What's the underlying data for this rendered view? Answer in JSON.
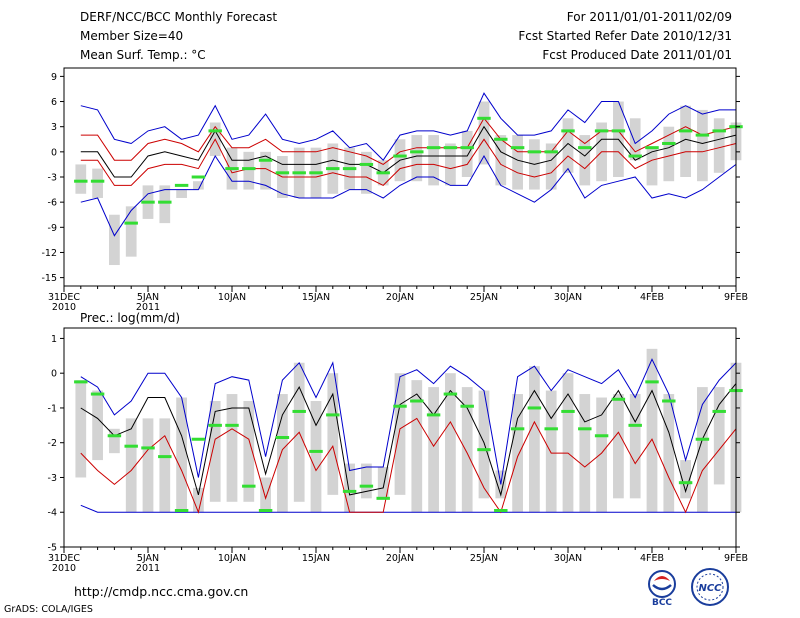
{
  "header": {
    "title": "DERF/NCC/BCC Monthly Forecast",
    "member_size": "Member Size=40",
    "variable": "Mean Surf. Temp.: °C",
    "forecast_period": "For 2011/01/01-2011/02/09",
    "start_date": "Fcst Started Refer Date 2010/12/31",
    "produced_date": "Fcst Produced Date 2011/01/01"
  },
  "footer": {
    "url": "http://cmdp.ncc.cma.gov.cn",
    "credit": "GrADS: COLA/IGES",
    "logo_bcc_text": "BCC",
    "logo_ncc_text": "NCC"
  },
  "colors": {
    "frame": "#000000",
    "bar": "#d3d3d3",
    "mean": "#000000",
    "inner_band": "#cc0000",
    "outer_band": "#0000cc",
    "observed": "#33dd33"
  },
  "chart_data": [
    {
      "type": "line",
      "panel": "temperature",
      "ylabel": "Mean Surf. Temp.: °C",
      "ylim": [
        -16,
        10
      ],
      "yticks": [
        9,
        6,
        3,
        0,
        -3,
        -6,
        -9,
        -12,
        -15
      ],
      "x": [
        1,
        2,
        3,
        4,
        5,
        6,
        7,
        8,
        9,
        10,
        11,
        12,
        13,
        14,
        15,
        16,
        17,
        18,
        19,
        20,
        21,
        22,
        23,
        24,
        25,
        26,
        27,
        28,
        29,
        30,
        31,
        32,
        33,
        34,
        35,
        36,
        37,
        38,
        39,
        40
      ],
      "xlim": [
        0,
        40
      ],
      "xtick_positions": [
        0,
        5,
        10,
        15,
        20,
        25,
        30,
        35,
        40
      ],
      "xtick_labels": [
        "31DEC",
        "5JAN",
        "10JAN",
        "15JAN",
        "20JAN",
        "25JAN",
        "30JAN",
        "4FEB",
        "9FEB"
      ],
      "xtick_sublabels": {
        "0": "2010",
        "5": "2011"
      },
      "series": [
        {
          "name": "ensemble range bar",
          "style": "bar",
          "low": [
            -5,
            -5.5,
            -13.5,
            -12.5,
            -8,
            -8.5,
            -5.5,
            -4.5,
            -0.5,
            -4.5,
            -4.5,
            -4.5,
            -5.5,
            -5.5,
            -5.5,
            -5,
            -4.5,
            -5,
            -4,
            -3.5,
            -3.5,
            -4,
            -4,
            -3,
            -1.5,
            -4,
            -4.5,
            -4.5,
            -4.5,
            -2.5,
            -4,
            -3.5,
            -3,
            -1,
            -4,
            -3.5,
            -3,
            -3.5,
            -2.5,
            -1
          ],
          "high": [
            -1.5,
            -2,
            -7.5,
            -6.5,
            -4,
            -4,
            -4.5,
            -3.5,
            3.5,
            0.5,
            0,
            0,
            -0.5,
            0.5,
            0.5,
            1,
            0.5,
            0,
            -1,
            1.5,
            2,
            2,
            1,
            2.5,
            6,
            2,
            2,
            1.5,
            1,
            4,
            2,
            3.5,
            6,
            4,
            0.5,
            3,
            5.5,
            5,
            4,
            3.5
          ]
        },
        {
          "name": "outer upper (blue)",
          "style": "line",
          "color": "#0000cc",
          "values": [
            5.5,
            5,
            1.5,
            1,
            2.5,
            3,
            1.5,
            2,
            5.5,
            1.5,
            2,
            4.5,
            1.5,
            1,
            1.5,
            2.5,
            0.5,
            1,
            -1,
            2,
            2.5,
            2.5,
            2,
            2.5,
            7,
            4,
            2,
            2,
            2.5,
            5,
            3.5,
            6,
            6,
            1,
            2.5,
            4.5,
            5.5,
            4.5,
            5,
            5
          ]
        },
        {
          "name": "outer lower (blue)",
          "style": "line",
          "color": "#0000cc",
          "values": [
            -6,
            -5.5,
            -10,
            -7,
            -5,
            -4.5,
            -4.5,
            -4.5,
            -0.5,
            -3.5,
            -3.5,
            -4,
            -5,
            -5.5,
            -5.5,
            -5.5,
            -4.5,
            -4.5,
            -5.5,
            -4,
            -3,
            -3,
            -4,
            -4,
            -0.5,
            -4,
            -5,
            -6,
            -4.5,
            -2,
            -5.5,
            -4,
            -3.5,
            -3,
            -5.5,
            -5,
            -5.5,
            -4.5,
            -3,
            -1.5
          ]
        },
        {
          "name": "inner upper (red)",
          "style": "line",
          "color": "#cc0000",
          "values": [
            2,
            2,
            -1,
            -1,
            1,
            1.5,
            1,
            0,
            3,
            0.5,
            0.5,
            1.5,
            0,
            0,
            0,
            0.5,
            0,
            -0.5,
            -1.5,
            0,
            0.5,
            0.5,
            0.5,
            0.5,
            4,
            1.5,
            0,
            0,
            0,
            2.5,
            1,
            2.5,
            2.5,
            0,
            1,
            2,
            3,
            2,
            2.5,
            3
          ]
        },
        {
          "name": "ensemble mean (black)",
          "style": "line",
          "color": "#000000",
          "values": [
            0,
            0,
            -3,
            -3,
            -0.5,
            0,
            -0.5,
            -1,
            2.5,
            -1,
            -1,
            -0.5,
            -1.5,
            -1.5,
            -1.5,
            -1,
            -1.5,
            -1.5,
            -2.5,
            -1,
            -0.5,
            -0.5,
            -0.5,
            -0.5,
            3,
            0,
            -1,
            -1.5,
            -1,
            1,
            -0.5,
            1.5,
            1.5,
            -1,
            0,
            0.5,
            1.5,
            1,
            1.5,
            2
          ]
        },
        {
          "name": "inner lower (red)",
          "style": "line",
          "color": "#cc0000",
          "values": [
            -1,
            -1,
            -4,
            -4,
            -2,
            -1.5,
            -1.5,
            -2,
            1.5,
            -2.5,
            -2,
            -2,
            -3,
            -3,
            -3,
            -2.5,
            -3,
            -3,
            -4,
            -2,
            -1.5,
            -1.5,
            -2,
            -1.5,
            1.5,
            -1.5,
            -2.5,
            -3,
            -2.5,
            -0.5,
            -2,
            0,
            0,
            -2,
            -1,
            -0.5,
            0,
            0,
            0.5,
            1
          ]
        },
        {
          "name": "observed (green)",
          "style": "dash",
          "color": "#33dd33",
          "values": [
            -3.5,
            -3.5,
            null,
            -8.5,
            -6,
            -6,
            -4,
            -3,
            2.5,
            -2,
            -2,
            -1,
            -2.5,
            -2.5,
            -2.5,
            -2,
            -2,
            -1.5,
            -2.5,
            -0.5,
            0,
            0.5,
            0.5,
            0.5,
            4,
            1.5,
            0.5,
            0,
            0,
            2.5,
            0.5,
            2.5,
            2.5,
            -0.5,
            0.5,
            1,
            2.5,
            2,
            2.5,
            3
          ]
        }
      ]
    },
    {
      "type": "line",
      "panel": "precipitation",
      "ylabel": "Prec.: log(mm/d)",
      "ylim": [
        -5,
        1.3
      ],
      "yticks": [
        1,
        0,
        -1,
        -2,
        -3,
        -4,
        -5
      ],
      "x": [
        1,
        2,
        3,
        4,
        5,
        6,
        7,
        8,
        9,
        10,
        11,
        12,
        13,
        14,
        15,
        16,
        17,
        18,
        19,
        20,
        21,
        22,
        23,
        24,
        25,
        26,
        27,
        28,
        29,
        30,
        31,
        32,
        33,
        34,
        35,
        36,
        37,
        38,
        39,
        40
      ],
      "xlim": [
        0,
        40
      ],
      "xtick_positions": [
        0,
        5,
        10,
        15,
        20,
        25,
        30,
        35,
        40
      ],
      "xtick_labels": [
        "31DEC",
        "5JAN",
        "10JAN",
        "15JAN",
        "20JAN",
        "25JAN",
        "30JAN",
        "4FEB",
        "9FEB"
      ],
      "xtick_sublabels": {
        "0": "2010",
        "5": "2011"
      },
      "series": [
        {
          "name": "ensemble range bar",
          "style": "bar",
          "low": [
            -3,
            -2.5,
            -2.3,
            -4,
            -4,
            -4,
            -4,
            -4,
            -3.7,
            -3.7,
            -3.7,
            -4,
            -4,
            -3.7,
            -4,
            -3.5,
            -4,
            -3.6,
            -3.6,
            -3.5,
            -4,
            -4,
            -4,
            -4,
            -3.6,
            -3.6,
            -4,
            -4,
            -4,
            -4,
            -4,
            -4,
            -3.6,
            -3.6,
            -4,
            -4,
            -3.6,
            -4,
            -3.2,
            -4
          ],
          "high": [
            -0.2,
            -0.5,
            -1.6,
            -1.3,
            -1.3,
            -1.3,
            -0.7,
            -3.3,
            -0.8,
            -0.6,
            -0.8,
            -3,
            -0.6,
            0.3,
            -0.8,
            0,
            -2.6,
            -2.6,
            -2.7,
            0,
            -0.2,
            -0.4,
            0,
            -0.4,
            -0.5,
            -2.8,
            -0.6,
            0.2,
            -0.5,
            0,
            -0.6,
            -0.7,
            -0.6,
            -0.6,
            0.7,
            -0.6,
            -2.5,
            -0.4,
            -0.4,
            0.3
          ]
        },
        {
          "name": "outer upper (blue)",
          "style": "line",
          "color": "#0000cc",
          "values": [
            -0.1,
            -0.4,
            -1.2,
            -0.8,
            0,
            0,
            -0.7,
            -3,
            -0.3,
            -0.1,
            -0.2,
            -2.4,
            -0.2,
            0.3,
            -0.7,
            0.3,
            -2.8,
            -2.7,
            -2.7,
            -0.1,
            0.1,
            -0.3,
            0.2,
            -0.1,
            -0.5,
            -3.2,
            -0.1,
            0.2,
            -0.5,
            0.1,
            -0.1,
            -0.3,
            0.1,
            -0.7,
            0.4,
            -0.6,
            -2.5,
            -0.9,
            -0.2,
            0.3
          ]
        },
        {
          "name": "outer lower (blue)",
          "style": "line",
          "color": "#0000cc",
          "values": [
            -3.8,
            -4,
            -4,
            -4,
            -4,
            -4,
            -4,
            -4,
            -4,
            -4,
            -4,
            -4,
            -4,
            -4,
            -4,
            -4,
            -4,
            -4,
            -4,
            -4,
            -4,
            -4,
            -4,
            -4,
            -4,
            -4,
            -4,
            -4,
            -4,
            -4,
            -4,
            -4,
            -4,
            -4,
            -4,
            -4,
            -4,
            -4,
            -4,
            -4
          ]
        },
        {
          "name": "ensemble mean (black)",
          "style": "line",
          "color": "#000000",
          "values": [
            -1,
            -1.3,
            -1.8,
            -1.6,
            -0.7,
            -0.7,
            -1.8,
            -3.5,
            -1.1,
            -1,
            -1,
            -2.9,
            -1.2,
            -0.4,
            -1.5,
            -0.6,
            -3.5,
            -3.4,
            -3.3,
            -0.9,
            -0.6,
            -1.2,
            -0.5,
            -1,
            -2,
            -3.5,
            -1.3,
            -0.5,
            -1.3,
            -0.6,
            -1.4,
            -1.2,
            -0.5,
            -1.4,
            -0.5,
            -1.7,
            -3.4,
            -1.9,
            -0.9,
            -0.3
          ]
        },
        {
          "name": "inner lower (red)",
          "style": "line",
          "color": "#cc0000",
          "values": [
            -2.3,
            -2.8,
            -3.2,
            -2.8,
            -2.2,
            -1.8,
            -2.8,
            -4,
            -1.9,
            -1.6,
            -1.9,
            -3.6,
            -2.2,
            -1.7,
            -2.8,
            -2.1,
            -4,
            -4,
            -4,
            -1.6,
            -1.3,
            -2.1,
            -1.4,
            -2.3,
            -3.3,
            -4,
            -2.4,
            -1.4,
            -2.3,
            -2.3,
            -2.7,
            -2.3,
            -1.7,
            -2.6,
            -1.9,
            -3,
            -4,
            -2.8,
            -2.2,
            -1.6
          ]
        },
        {
          "name": "observed (green)",
          "style": "dash",
          "color": "#33dd33",
          "values": [
            -0.25,
            -0.6,
            -1.8,
            -2.1,
            -2.15,
            -2.4,
            -3.95,
            -1.9,
            -1.5,
            -1.5,
            -3.25,
            -3.95,
            -1.85,
            -1.1,
            -2.25,
            -1.2,
            -3.4,
            -3.25,
            -3.6,
            -0.95,
            -0.8,
            -1.2,
            -0.6,
            -0.95,
            -2.2,
            -3.95,
            -1.6,
            -1,
            -1.6,
            -1.1,
            -1.6,
            -1.8,
            -0.75,
            -1.5,
            -0.25,
            -0.8,
            -3.15,
            -1.9,
            -1.1,
            -0.5
          ]
        }
      ]
    }
  ]
}
